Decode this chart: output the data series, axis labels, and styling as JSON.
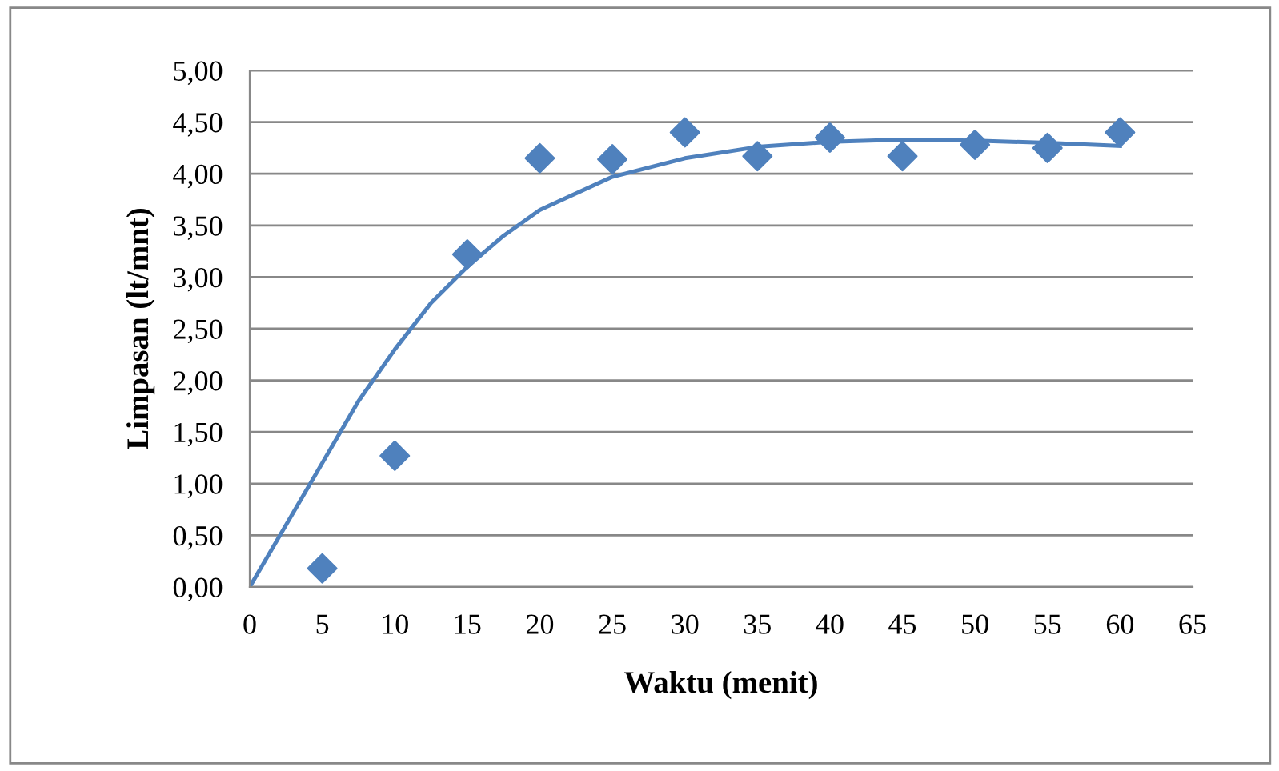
{
  "chart_data": {
    "type": "scatter",
    "xlabel": "Waktu (menit)",
    "ylabel": "Limpasan (lt/mnt)",
    "series": [
      {
        "color": "#4f81bd",
        "marker": "diamond",
        "x": [
          5,
          10,
          15,
          20,
          25,
          30,
          35,
          40,
          45,
          50,
          55,
          60
        ],
        "values": [
          0.18,
          1.27,
          3.22,
          4.15,
          4.14,
          4.4,
          4.17,
          4.35,
          4.17,
          4.28,
          4.25,
          4.4
        ]
      },
      {
        "type": "line",
        "color": "#4f81bd",
        "marker": "none",
        "x": [
          0,
          2.5,
          5,
          7.5,
          10,
          12.5,
          15,
          17.5,
          20,
          25,
          30,
          35,
          40,
          45,
          50,
          55,
          60
        ],
        "values": [
          0,
          0.6,
          1.2,
          1.8,
          2.3,
          2.75,
          3.1,
          3.4,
          3.65,
          3.97,
          4.15,
          4.26,
          4.31,
          4.33,
          4.32,
          4.3,
          4.27
        ]
      }
    ],
    "xlim": [
      0,
      65
    ],
    "xticks": [
      0,
      5,
      10,
      15,
      20,
      25,
      30,
      35,
      40,
      45,
      50,
      55,
      60,
      65
    ],
    "ylim": [
      0,
      5
    ],
    "yticks": [
      {
        "value": 0,
        "label": "0,00"
      },
      {
        "value": 0.5,
        "label": "0,50"
      },
      {
        "value": 1,
        "label": "1,00"
      },
      {
        "value": 1.5,
        "label": "1,50"
      },
      {
        "value": 2,
        "label": "2,00"
      },
      {
        "value": 2.5,
        "label": "2,50"
      },
      {
        "value": 3,
        "label": "3,00"
      },
      {
        "value": 3.5,
        "label": "3,50"
      },
      {
        "value": 4,
        "label": "4,00"
      },
      {
        "value": 4.5,
        "label": "4,50"
      },
      {
        "value": 5,
        "label": "5,00"
      }
    ],
    "grid": "y"
  }
}
